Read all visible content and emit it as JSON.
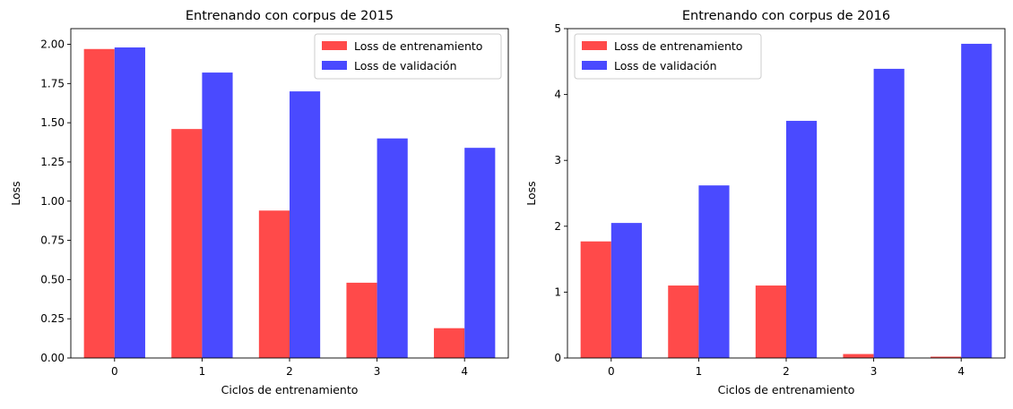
{
  "chart_data": [
    {
      "type": "bar",
      "title": "Entrenando con corpus de 2015",
      "xlabel": "Ciclos de entrenamiento",
      "ylabel": "Loss",
      "categories": [
        "0",
        "1",
        "2",
        "3",
        "4"
      ],
      "ylim": [
        0,
        2.1
      ],
      "yticks": [
        0.0,
        0.25,
        0.5,
        0.75,
        1.0,
        1.25,
        1.5,
        1.75,
        2.0
      ],
      "ytick_labels": [
        "0.00",
        "0.25",
        "0.50",
        "0.75",
        "1.00",
        "1.25",
        "1.50",
        "1.75",
        "2.00"
      ],
      "legend_position": "upper right",
      "series": [
        {
          "name": "Loss de entrenamiento",
          "color": "#ff4a4a",
          "values": [
            1.97,
            1.46,
            0.94,
            0.48,
            0.19
          ]
        },
        {
          "name": "Loss de validación",
          "color": "#4a4aff",
          "values": [
            1.98,
            1.82,
            1.7,
            1.4,
            1.34
          ]
        }
      ]
    },
    {
      "type": "bar",
      "title": "Entrenando con corpus de 2016",
      "xlabel": "Ciclos de entrenamiento",
      "ylabel": "Loss",
      "categories": [
        "0",
        "1",
        "2",
        "3",
        "4"
      ],
      "ylim": [
        0,
        5
      ],
      "yticks": [
        0,
        1,
        2,
        3,
        4,
        5
      ],
      "ytick_labels": [
        "0",
        "1",
        "2",
        "3",
        "4",
        "5"
      ],
      "legend_position": "upper left",
      "series": [
        {
          "name": "Loss de entrenamiento",
          "color": "#ff4a4a",
          "values": [
            1.77,
            1.1,
            1.1,
            0.06,
            0.02
          ]
        },
        {
          "name": "Loss de validación",
          "color": "#4a4aff",
          "values": [
            2.05,
            2.62,
            3.6,
            4.39,
            4.77
          ]
        }
      ]
    }
  ]
}
